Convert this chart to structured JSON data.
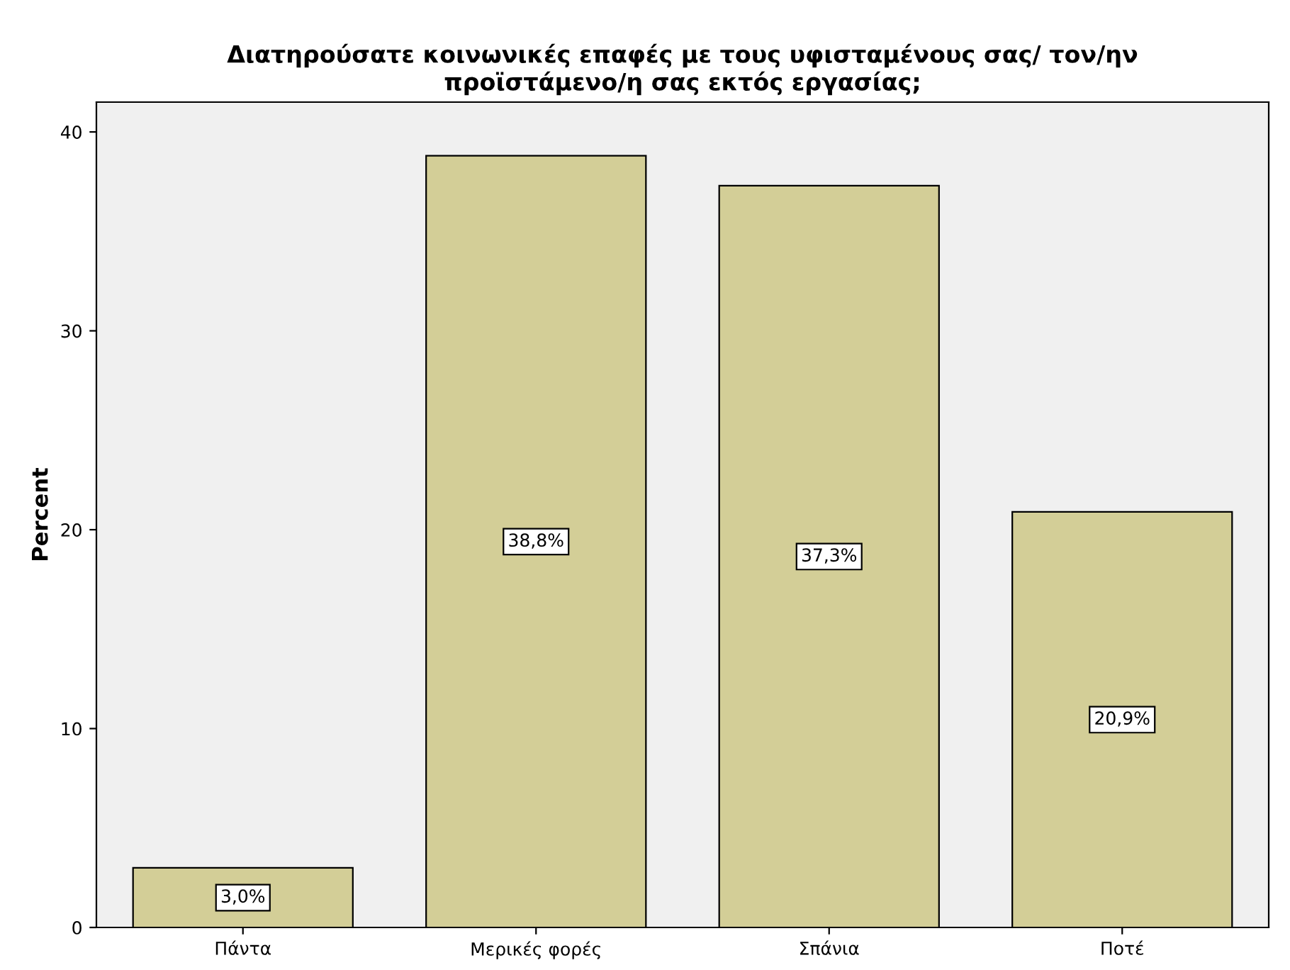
{
  "chart_data": {
    "type": "bar",
    "title": "Διατηρούσατε κοινωνικές επαφές με τους υφισταμένους σας/ τον/ην\nπροϊστάμενο/η σας εκτός εργασίας;",
    "ylabel": "Percent",
    "categories": [
      "Πάντα",
      "Μερικές φορές",
      "Σπάνια",
      "Ποτέ"
    ],
    "values": [
      3.0,
      38.8,
      37.3,
      20.9
    ],
    "value_labels": [
      "3,0%",
      "38,8%",
      "37,3%",
      "20,9%"
    ],
    "color": "#d3ce97",
    "ylim": [
      0,
      41.5
    ],
    "yticks": [
      0,
      10,
      20,
      30,
      40
    ],
    "grid": false
  }
}
